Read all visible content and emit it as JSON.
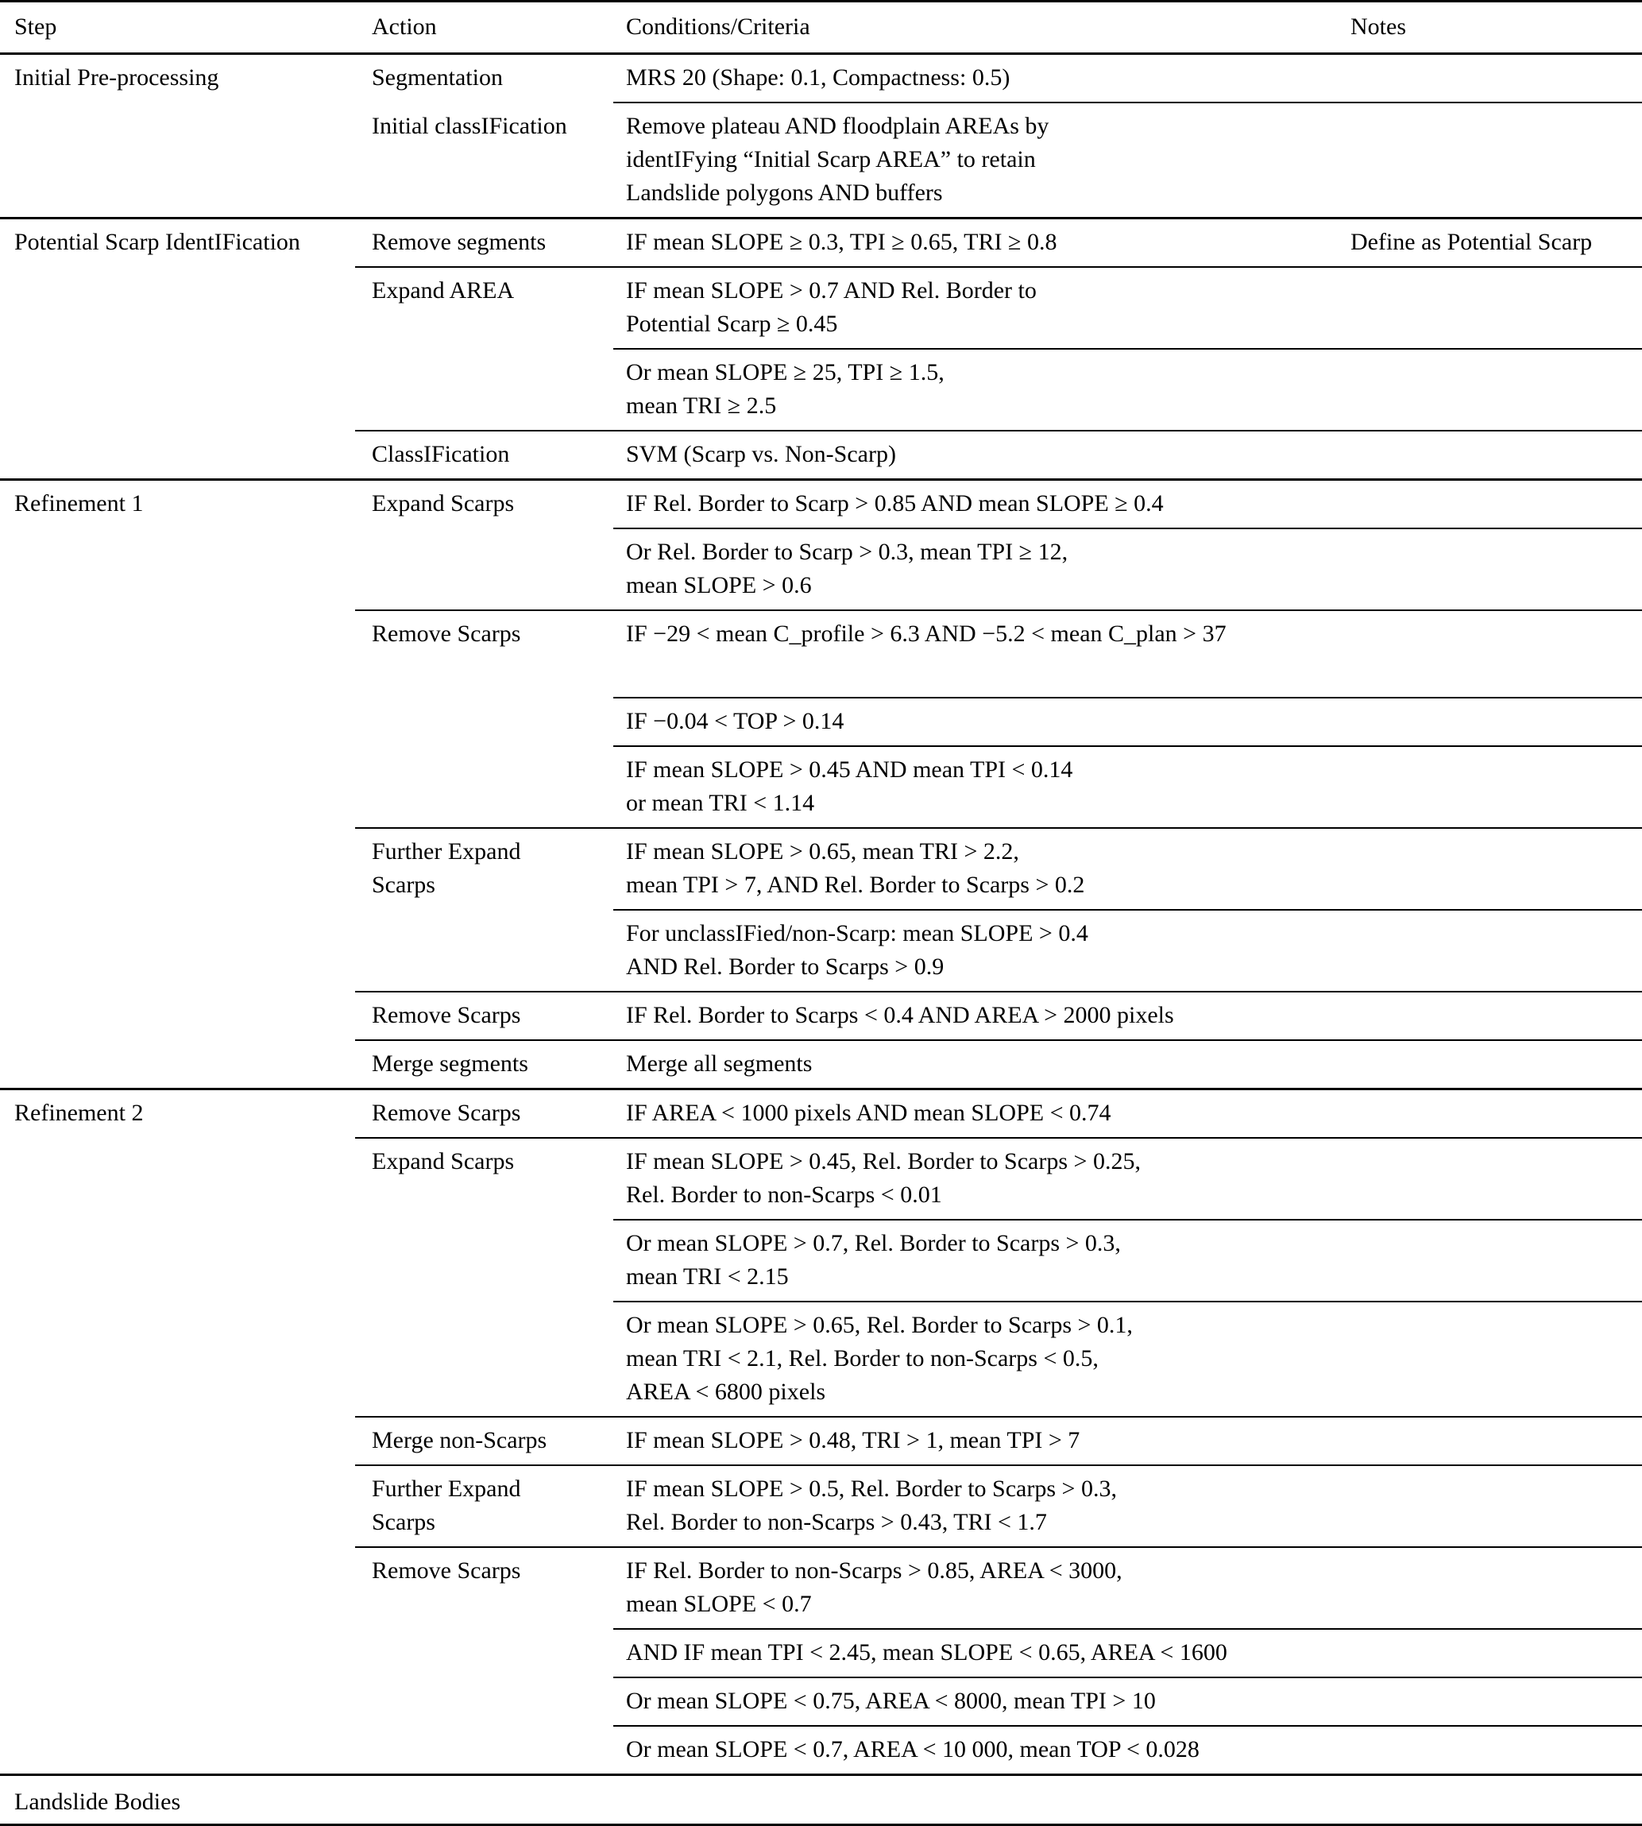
{
  "meta": {
    "background_color": "#ffffff",
    "text_color": "#000000",
    "rule_color": "#000000",
    "description": "Workflow table: steps, actions and conditions/criteria for landslide scarp identification"
  },
  "header": {
    "step": "Step",
    "action": "Action",
    "conditions": "Conditions/Criteria",
    "notes": "Notes"
  },
  "sections": [
    {
      "step": "Initial Pre-processing",
      "bands": [
        {
          "action": "Segmentation",
          "cond": "MRS 20 (Shape: 0.1, Compactness: 0.5)",
          "notes": ""
        },
        {
          "action": "Initial classIFication",
          "cond": "Remove plateau AND floodplain AREAs by\nidentIFying “Initial Scarp AREA” to retain\nLandslide polygons AND buffers",
          "notes": ""
        }
      ]
    },
    {
      "step": "Potential Scarp IdentIFication",
      "bands": [
        {
          "action": "Remove segments",
          "cond": "IF mean SLOPE ≥ 0.3, TPI ≥ 0.65, TRI ≥ 0.8",
          "notes": "Define as Potential Scarp"
        },
        {
          "action": "Expand AREA",
          "cond": "IF mean SLOPE > 0.7 AND Rel. Border to\nPotential Scarp ≥ 0.45",
          "notes": ""
        },
        {
          "action": "",
          "cond": "Or mean SLOPE ≥ 25, TPI ≥ 1.5,\nmean TRI ≥ 2.5",
          "notes": ""
        },
        {
          "action": "ClassIFication",
          "cond": "SVM (Scarp vs. Non-Scarp)",
          "notes": ""
        }
      ]
    },
    {
      "step": "Refinement 1",
      "bands": [
        {
          "action": "Expand Scarps",
          "cond": "IF Rel. Border to Scarp > 0.85 AND mean SLOPE ≥ 0.4",
          "notes": ""
        },
        {
          "action": "",
          "cond": "Or Rel. Border to Scarp > 0.3, mean TPI ≥ 12,\nmean SLOPE > 0.6",
          "notes": ""
        },
        {
          "action": "Remove Scarps",
          "cond": "IF −29 < mean C_profile > 6.3 AND −5.2 < mean C_plan > 37",
          "notes": ""
        },
        {
          "action": "",
          "cond": "IF −0.04 < TOP > 0.14",
          "notes": ""
        },
        {
          "action": "",
          "cond": "IF mean SLOPE > 0.45 AND mean TPI < 0.14\nor mean TRI < 1.14",
          "notes": ""
        },
        {
          "action": "Further Expand\nScarps",
          "cond": "IF mean SLOPE > 0.65, mean TRI > 2.2,\nmean TPI > 7, AND Rel. Border to Scarps > 0.2",
          "notes": ""
        },
        {
          "action": "",
          "cond": "For unclassIFied/non-Scarp: mean SLOPE > 0.4\nAND Rel. Border to Scarps > 0.9",
          "notes": ""
        },
        {
          "action": "Remove Scarps",
          "cond": "IF Rel. Border to Scarps < 0.4 AND AREA > 2000 pixels",
          "notes": ""
        },
        {
          "action": "Merge segments",
          "cond": "Merge all segments",
          "notes": ""
        }
      ]
    },
    {
      "step": "Refinement 2",
      "bands": [
        {
          "action": "Remove Scarps",
          "cond": "IF AREA < 1000 pixels AND mean SLOPE < 0.74",
          "notes": ""
        },
        {
          "action": "Expand Scarps",
          "cond": "IF mean SLOPE > 0.45, Rel. Border to Scarps > 0.25,\nRel. Border to non-Scarps < 0.01",
          "notes": ""
        },
        {
          "action": "",
          "cond": "Or mean SLOPE > 0.7, Rel. Border to Scarps > 0.3,\nmean TRI < 2.15",
          "notes": ""
        },
        {
          "action": "",
          "cond": "Or mean SLOPE > 0.65, Rel. Border to Scarps > 0.1,\nmean TRI < 2.1, Rel. Border to non-Scarps < 0.5,\nAREA < 6800 pixels",
          "notes": ""
        },
        {
          "action": "Merge non-Scarps",
          "cond": "IF mean SLOPE > 0.48, TRI > 1, mean TPI > 7",
          "notes": ""
        },
        {
          "action": "Further Expand\nScarps",
          "cond": "IF mean SLOPE > 0.5, Rel. Border to Scarps > 0.3,\nRel. Border to non-Scarps > 0.43, TRI < 1.7",
          "notes": ""
        },
        {
          "action": "Remove Scarps",
          "cond": "IF Rel. Border to non-Scarps > 0.85, AREA < 3000,\nmean SLOPE < 0.7",
          "notes": ""
        },
        {
          "action": "",
          "cond": "AND IF mean TPI < 2.45, mean SLOPE < 0.65, AREA < 1600",
          "notes": ""
        },
        {
          "action": "",
          "cond": "Or mean SLOPE < 0.75, AREA < 8000, mean TPI > 10",
          "notes": ""
        },
        {
          "action": "",
          "cond": "Or mean SLOPE < 0.7, AREA < 10 000, mean TOP < 0.028",
          "notes": ""
        }
      ]
    },
    {
      "step": "Landslide Bodies",
      "bands": []
    }
  ]
}
